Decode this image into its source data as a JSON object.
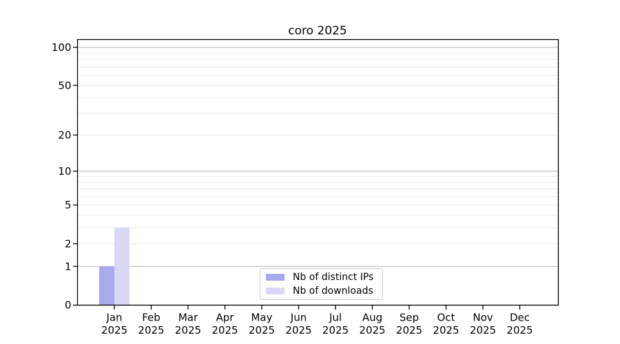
{
  "chart_data": {
    "type": "bar",
    "title": "coro 2025",
    "x_categories": [
      "Jan",
      "Feb",
      "Mar",
      "Apr",
      "May",
      "Jun",
      "Jul",
      "Aug",
      "Sep",
      "Oct",
      "Nov",
      "Dec"
    ],
    "x_sublabel": "2025",
    "series": [
      {
        "name": "Nb of distinct IPs",
        "color": "#a9a9f0",
        "values": [
          1,
          0,
          0,
          0,
          0,
          0,
          0,
          0,
          0,
          0,
          0,
          0
        ]
      },
      {
        "name": "Nb of downloads",
        "color": "#d9d9f7",
        "values": [
          3,
          0,
          0,
          0,
          0,
          0,
          0,
          0,
          0,
          0,
          0,
          0
        ]
      }
    ],
    "y_scale": "log1p",
    "ylim": [
      0,
      116
    ],
    "y_ticks": [
      0,
      1,
      2,
      5,
      10,
      20,
      50,
      100
    ],
    "y_major_gridlines": [
      1,
      10,
      100
    ],
    "y_minor_gridlines": [
      2,
      3,
      4,
      5,
      6,
      7,
      8,
      9,
      20,
      30,
      40,
      50,
      60,
      70,
      80,
      90
    ],
    "grid": "horizontal",
    "legend_position": "lower-center",
    "colors": {
      "major_grid": "#b3b3b3",
      "minor_grid": "#e8e8e8",
      "axis": "#000000",
      "text": "#000000",
      "background": "#ffffff"
    }
  }
}
